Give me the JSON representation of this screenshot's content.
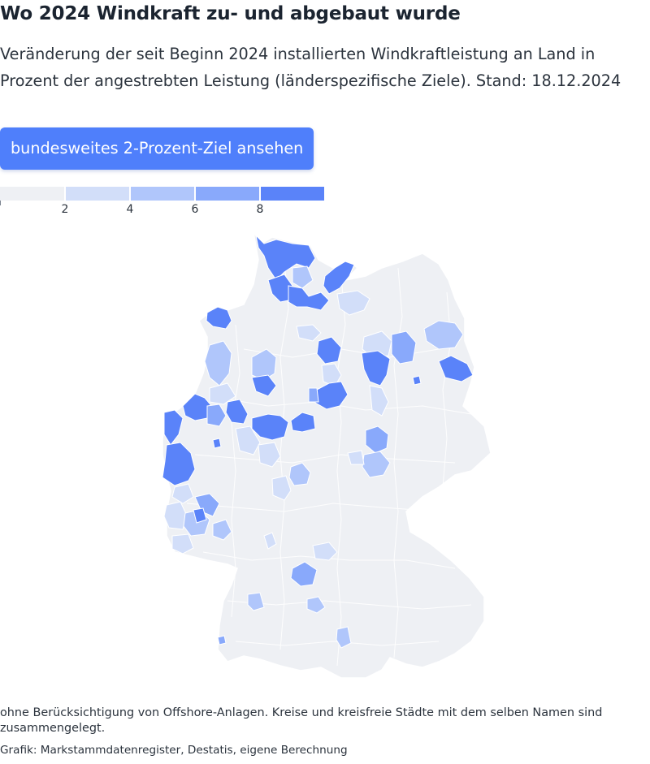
{
  "header": {
    "title": "Wo 2024 Windkraft zu- und abgebaut wurde",
    "subtitle": "Veränderung der seit Beginn 2024 installierten Windkraftleistung an Land in Prozent der angestrebten Leistung (länderspezifische Ziele). Stand: 18.12.2024"
  },
  "cta": {
    "label": "bundesweites 2-Prozent-Ziel ansehen"
  },
  "legend": {
    "ticks": [
      "2",
      "4",
      "6",
      "8"
    ],
    "colors": [
      "#eef0f4",
      "#d2def9",
      "#b0c6fb",
      "#89a9fb",
      "#5a83f9"
    ]
  },
  "map": {
    "colors": {
      "background": "#eef0f4",
      "border": "#ffffff",
      "level1": "#d2def9",
      "level2": "#b0c6fb",
      "level3": "#89a9fb",
      "level4": "#5a83f9"
    }
  },
  "footer": {
    "note": "ohne Berücksichtigung von Offshore-Anlagen. Kreise und kreisfreie Städte mit dem selben Namen sind zusammengelegt.",
    "source": "Grafik: Markstammdatenregister, Destatis, eigene Berechnung"
  }
}
